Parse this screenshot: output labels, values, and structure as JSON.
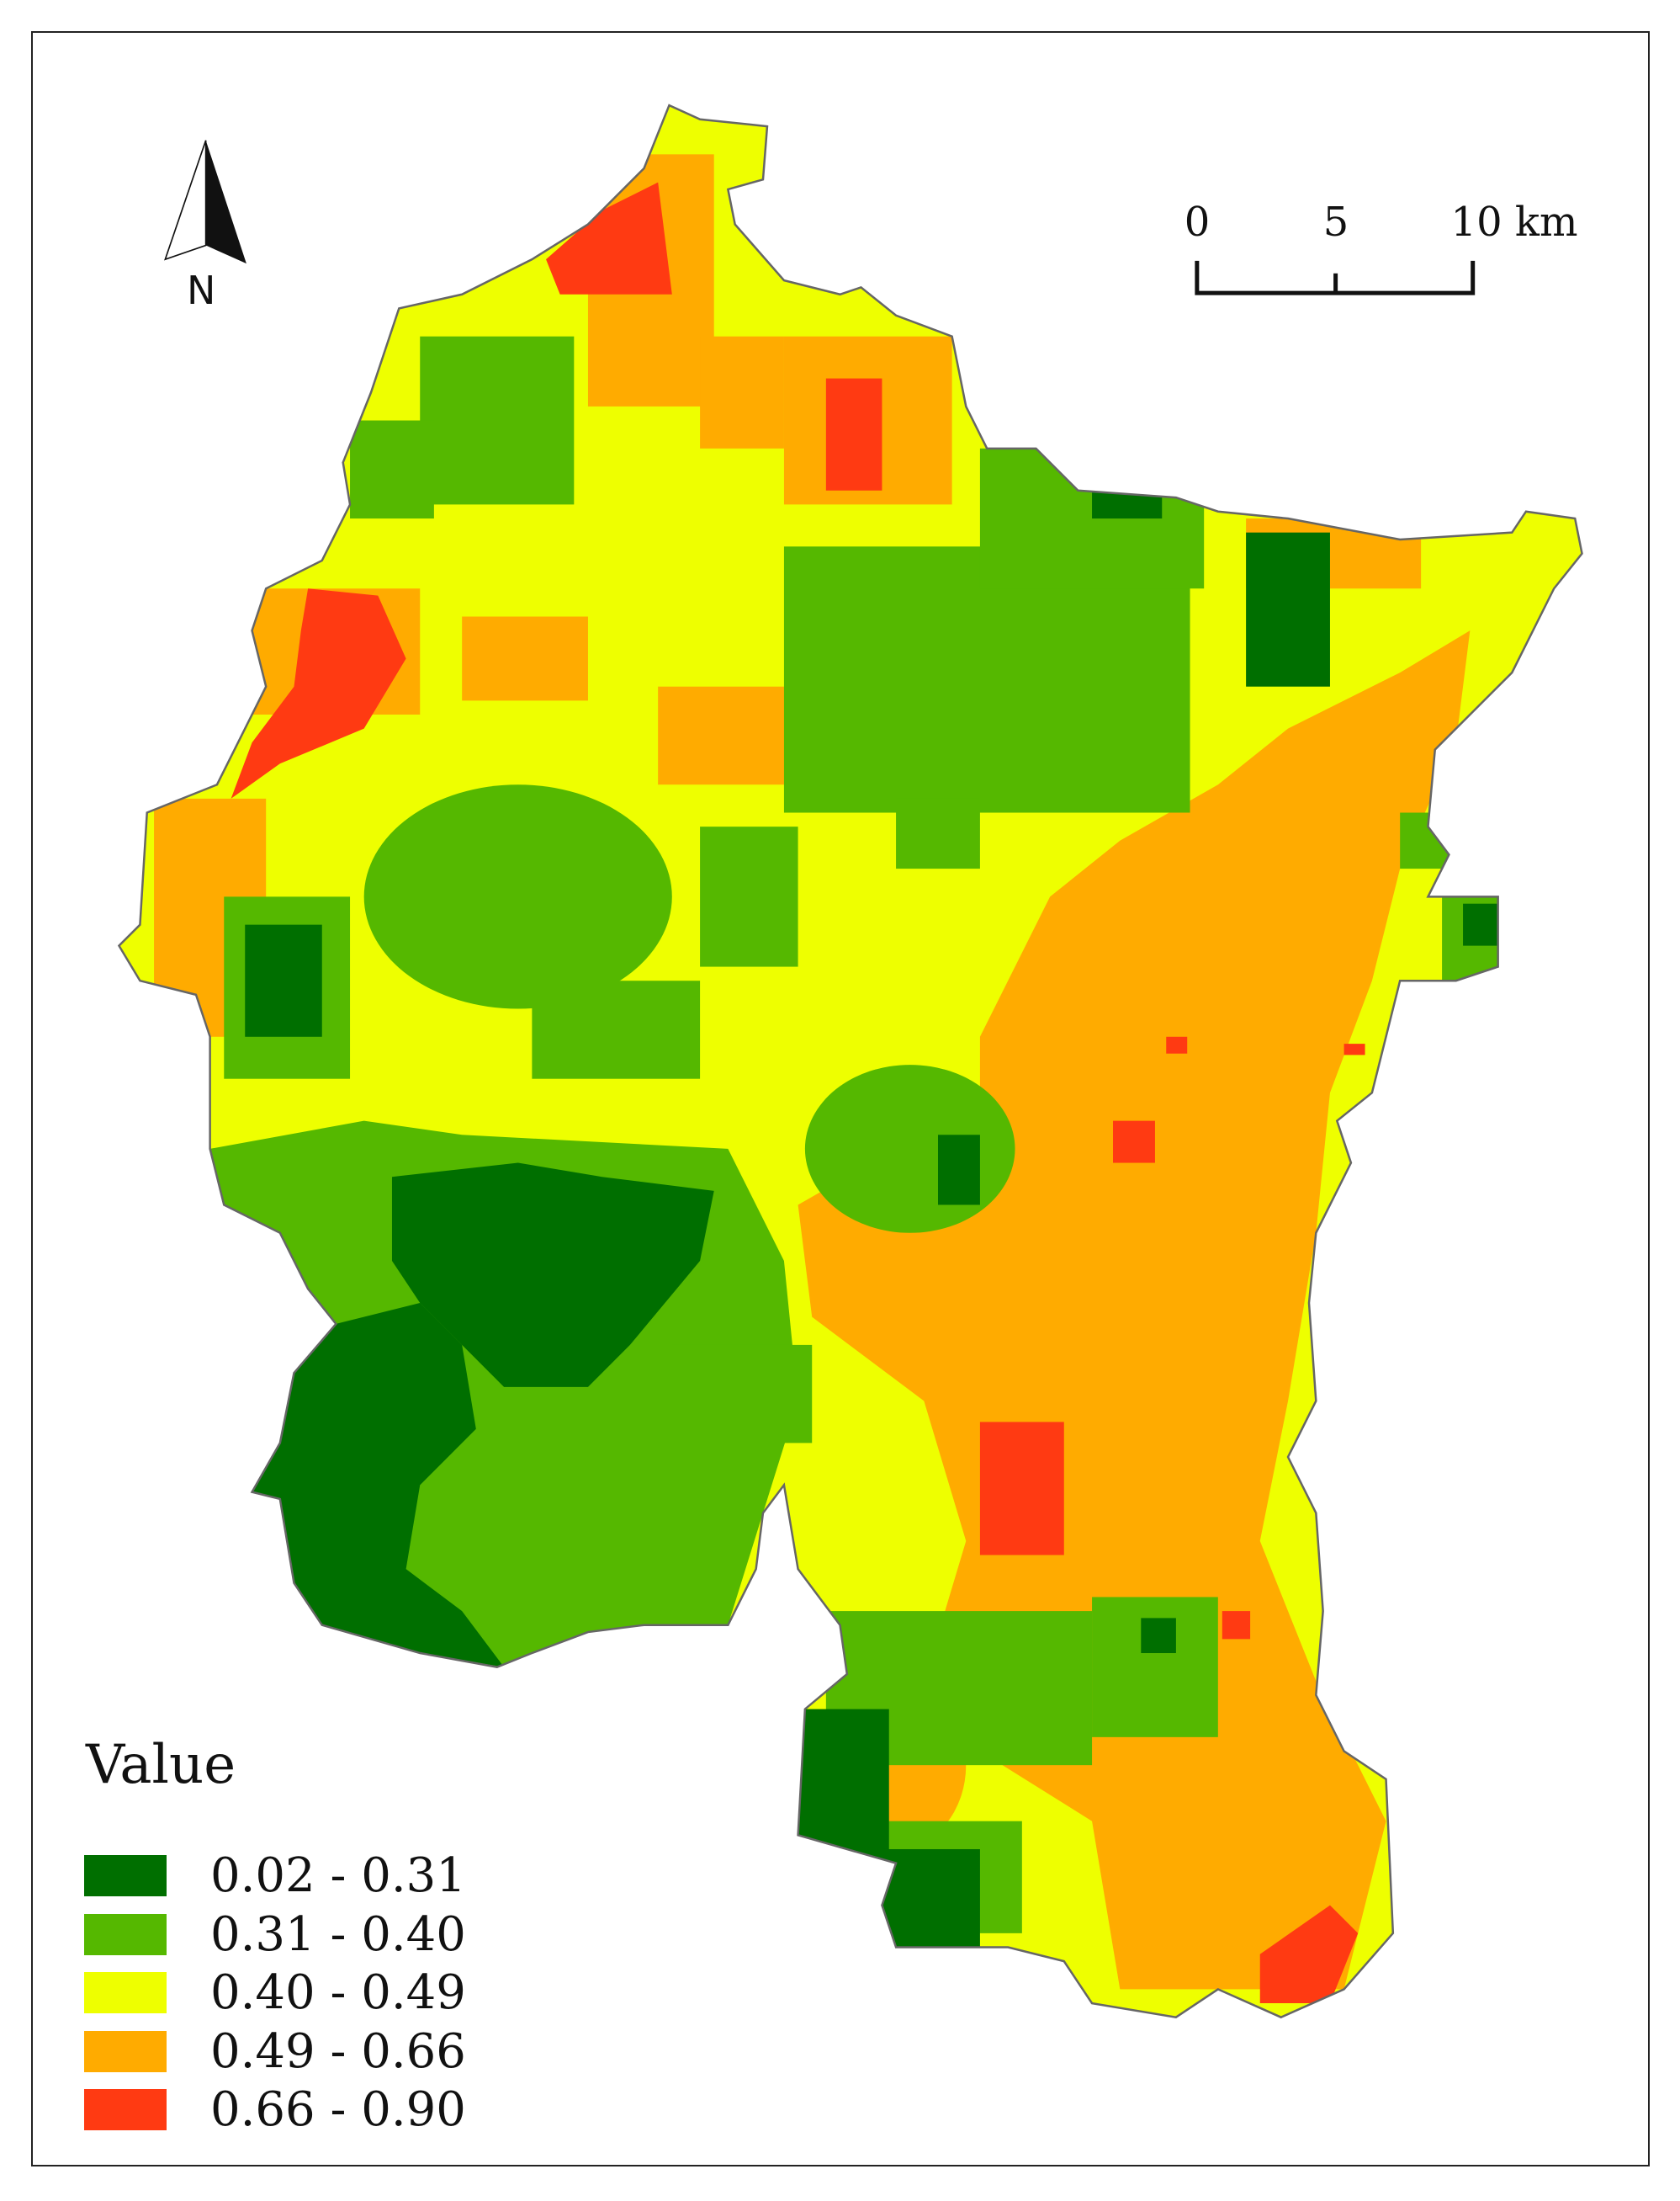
{
  "map": {
    "outline_color": "#666666",
    "classes_colors": [
      "#006f00",
      "#55b800",
      "#eeff00",
      "#ffab00",
      "#ff3a12"
    ]
  },
  "legend": {
    "title": "Value",
    "items": [
      {
        "label": "0.02 - 0.31",
        "color": "#006f00"
      },
      {
        "label": "0.31 - 0.40",
        "color": "#55b800"
      },
      {
        "label": "0.40 - 0.49",
        "color": "#eeff00"
      },
      {
        "label": "0.49 - 0.66",
        "color": "#ffab00"
      },
      {
        "label": "0.66 - 0.90",
        "color": "#ff3a12"
      }
    ]
  },
  "scale_bar": {
    "labels": [
      "0",
      "5",
      "10 km"
    ]
  },
  "north_arrow": {
    "label": "N"
  }
}
